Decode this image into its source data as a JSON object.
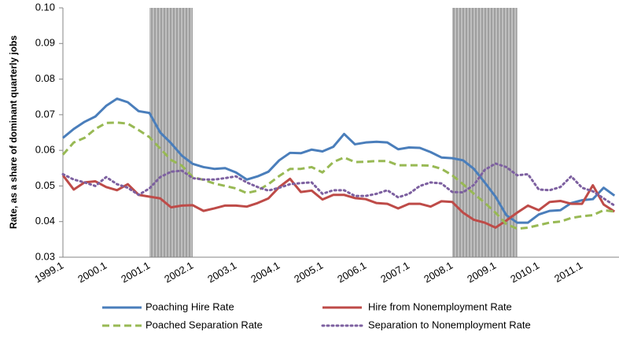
{
  "chart_data": {
    "type": "line",
    "y_label": "Rate, as a share of dominant quarterly jobs",
    "categories": [
      "1999.1",
      null,
      null,
      null,
      "2000.1",
      null,
      null,
      null,
      "2001.1",
      null,
      null,
      null,
      "2002.1",
      null,
      null,
      null,
      "2003.1",
      null,
      null,
      null,
      "2004.1",
      null,
      null,
      null,
      "2005.1",
      null,
      null,
      null,
      "2006.1",
      null,
      null,
      null,
      "2007.1",
      null,
      null,
      null,
      "2008.1",
      null,
      null,
      null,
      "2009.1",
      null,
      null,
      null,
      "2010.1",
      null,
      null,
      null,
      "2011.1",
      null,
      null,
      null
    ],
    "ylim": [
      0.03,
      0.1
    ],
    "yticks": [
      0.03,
      0.04,
      0.05,
      0.06,
      0.07,
      0.08,
      0.09,
      {
        "value": 0.1,
        "label": "0.10"
      }
    ],
    "shaded_ranges": [
      [
        8,
        12
      ],
      [
        36,
        42
      ]
    ],
    "shade_color": "#bfbfbf",
    "series": [
      {
        "name": "Poaching Hire Rate",
        "color": "#4a7ebb",
        "dash": "solid",
        "values": [
          0.0635,
          0.066,
          0.068,
          0.0695,
          0.0725,
          0.0745,
          0.0735,
          0.071,
          0.0705,
          0.065,
          0.062,
          0.0585,
          0.0562,
          0.0553,
          0.0548,
          0.055,
          0.0538,
          0.0518,
          0.0527,
          0.054,
          0.0572,
          0.0593,
          0.0592,
          0.0602,
          0.0597,
          0.061,
          0.0646,
          0.0617,
          0.0622,
          0.0624,
          0.0622,
          0.0603,
          0.0608,
          0.0607,
          0.0595,
          0.058,
          0.0578,
          0.0572,
          0.0548,
          0.051,
          0.047,
          0.0418,
          0.0397,
          0.0397,
          0.042,
          0.043,
          0.0432,
          0.0452,
          0.046,
          0.0463,
          0.0495,
          0.0473
        ]
      },
      {
        "name": "Hire from Nonemployment Rate",
        "color": "#be4b48",
        "dash": "solid",
        "values": [
          0.053,
          0.049,
          0.051,
          0.0513,
          0.0497,
          0.0488,
          0.0505,
          0.0475,
          0.047,
          0.0465,
          0.044,
          0.0445,
          0.0446,
          0.043,
          0.0437,
          0.0445,
          0.0445,
          0.0442,
          0.0452,
          0.0465,
          0.0497,
          0.052,
          0.0483,
          0.0487,
          0.0462,
          0.0475,
          0.0475,
          0.0466,
          0.0463,
          0.0452,
          0.045,
          0.0437,
          0.045,
          0.045,
          0.0442,
          0.0457,
          0.0455,
          0.0425,
          0.0405,
          0.0397,
          0.0383,
          0.0403,
          0.0425,
          0.0445,
          0.0432,
          0.0455,
          0.0458,
          0.045,
          0.045,
          0.0502,
          0.0448,
          0.0428
        ]
      },
      {
        "name": "Poached Separation Rate",
        "color": "#98b954",
        "dash": "dashed",
        "values": [
          0.0588,
          0.0622,
          0.0635,
          0.066,
          0.0677,
          0.0678,
          0.0675,
          0.0657,
          0.0637,
          0.0605,
          0.0573,
          0.0557,
          0.0525,
          0.0517,
          0.0507,
          0.05,
          0.0493,
          0.048,
          0.0487,
          0.0505,
          0.0528,
          0.0548,
          0.0548,
          0.0553,
          0.0538,
          0.0567,
          0.058,
          0.0567,
          0.0568,
          0.057,
          0.057,
          0.0558,
          0.0558,
          0.0558,
          0.0557,
          0.0548,
          0.053,
          0.0505,
          0.0478,
          0.0453,
          0.0425,
          0.0393,
          0.038,
          0.0383,
          0.039,
          0.0397,
          0.04,
          0.041,
          0.0415,
          0.0418,
          0.0432,
          0.0428
        ]
      },
      {
        "name": "Separation to Nonemployment Rate",
        "color": "#7d60a0",
        "dash": "dotted",
        "values": [
          0.0533,
          0.0518,
          0.051,
          0.05,
          0.0525,
          0.0505,
          0.0495,
          0.0475,
          0.0493,
          0.0525,
          0.054,
          0.0543,
          0.0522,
          0.0518,
          0.0518,
          0.0522,
          0.0527,
          0.051,
          0.0497,
          0.0487,
          0.0495,
          0.0505,
          0.0508,
          0.051,
          0.0478,
          0.0488,
          0.0488,
          0.0472,
          0.0472,
          0.0478,
          0.0488,
          0.0468,
          0.0478,
          0.05,
          0.051,
          0.0507,
          0.0483,
          0.0482,
          0.0503,
          0.0545,
          0.0563,
          0.0553,
          0.053,
          0.0533,
          0.049,
          0.0488,
          0.0497,
          0.0527,
          0.0495,
          0.0485,
          0.0465,
          0.0445
        ]
      }
    ]
  }
}
